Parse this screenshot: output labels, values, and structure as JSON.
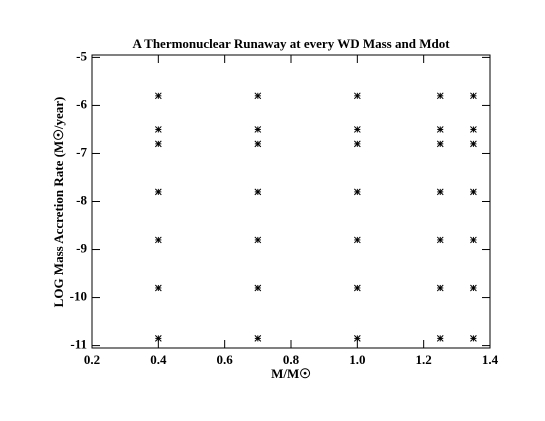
{
  "chart_data": {
    "type": "scatter",
    "title": "A Thermonuclear Runaway at every WD Mass and Mdot",
    "x_label": "M/M☉",
    "y_label": "LOG Mass Accretion Rate  (M☉/year)",
    "x": [
      0.4,
      0.4,
      0.4,
      0.4,
      0.4,
      0.4,
      0.4,
      0.7,
      0.7,
      0.7,
      0.7,
      0.7,
      0.7,
      0.7,
      1.0,
      1.0,
      1.0,
      1.0,
      1.0,
      1.0,
      1.0,
      1.25,
      1.25,
      1.25,
      1.25,
      1.25,
      1.25,
      1.25,
      1.35,
      1.35,
      1.35,
      1.35,
      1.35,
      1.35,
      1.35
    ],
    "values": [
      -5.8,
      -6.5,
      -6.8,
      -7.8,
      -8.8,
      -9.8,
      -10.85,
      -5.8,
      -6.5,
      -6.8,
      -7.8,
      -8.8,
      -9.8,
      -10.85,
      -5.8,
      -6.5,
      -6.8,
      -7.8,
      -8.8,
      -9.8,
      -10.85,
      -5.8,
      -6.5,
      -6.8,
      -7.8,
      -8.8,
      -9.8,
      -10.85,
      -5.8,
      -6.5,
      -6.8,
      -7.8,
      -8.8,
      -9.8,
      -10.85
    ],
    "color": "#000000",
    "marker": "asterisk",
    "xlim": [
      0.2,
      1.4
    ],
    "ylim": [
      -11.05,
      -4.95
    ],
    "xticks": [
      0.2,
      0.4,
      0.6,
      0.8,
      {
        "value": 1.0,
        "label": "1.0"
      },
      1.2,
      1.4
    ],
    "yticks": [
      -5,
      -6,
      -7,
      -8,
      -9,
      -10,
      -11
    ],
    "grid": false
  }
}
